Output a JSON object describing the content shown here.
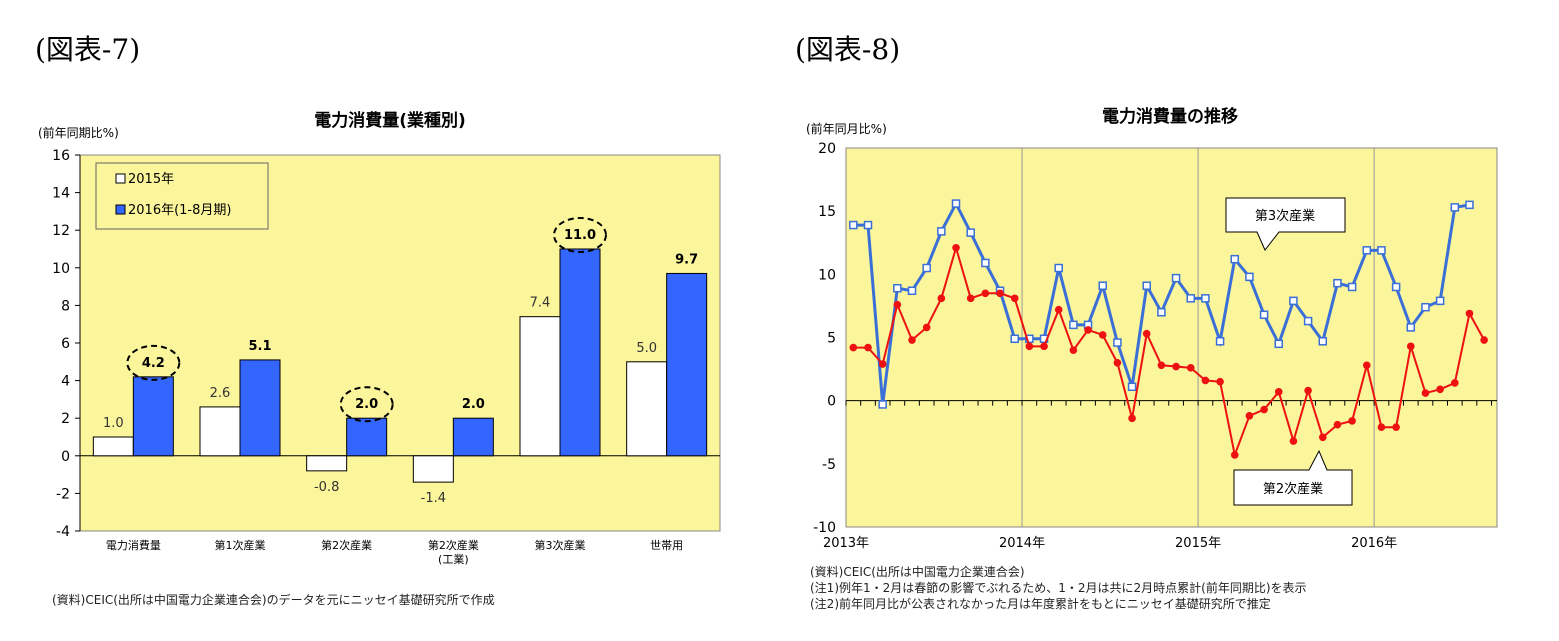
{
  "left": {
    "figure_label": "(図表-7)",
    "title": "電力消費量(業種別)",
    "unit": "(前年同期比%)",
    "source": "(資料)CEIC(出所は中国電力企業連合会)のデータを元にニッセイ基礎研究所で作成"
  },
  "right": {
    "figure_label": "(図表-8)",
    "title": "電力消費量の推移",
    "unit": "(前年同月比%)",
    "notes": [
      "(資料)CEIC(出所は中国電力企業連合会)",
      "(注1)例年1・2月は春節の影響でぶれるため、1・2月は共に2月時点累計(前年同期比)を表示",
      "(注2)前年同月比が公表されなかった月は年度累計をもとにニッセイ基礎研究所で推定"
    ]
  },
  "colors": {
    "plot_bg": "#fbf59b",
    "bar2015": "#ffffff",
    "bar2016": "#3366ff",
    "tertiary": "#3a6fd8",
    "secondary": "#ee1111"
  },
  "chart_data": [
    {
      "type": "bar",
      "categories": [
        "電力消費量",
        "第1次産業",
        "第2次産業",
        "第2次産業\n(工業)",
        "第3次産業",
        "世帯用"
      ],
      "series": [
        {
          "name": "2015年",
          "values": [
            1.0,
            2.6,
            -0.8,
            -1.4,
            7.4,
            5.0
          ]
        },
        {
          "name": "2016年(1-8月期)",
          "values": [
            4.2,
            5.1,
            2.0,
            2.0,
            11.0,
            9.7
          ]
        }
      ],
      "data_labels": [
        [
          "1.0",
          "2.6",
          "-0.8",
          "-1.4",
          "7.4",
          "5.0"
        ],
        [
          "4.2",
          "5.1",
          "2.0",
          "2.0",
          "11.0",
          "9.7"
        ]
      ],
      "circled": [
        [
          1,
          0
        ],
        [
          1,
          2
        ],
        [
          1,
          4
        ]
      ],
      "ylim": [
        -4,
        16
      ],
      "yticks": [
        -4,
        -2,
        0,
        2,
        4,
        6,
        8,
        10,
        12,
        14,
        16
      ],
      "legend_position": "top-left",
      "grid": false
    },
    {
      "type": "line",
      "x": [
        "2013-01",
        "2013-02",
        "2013-03",
        "2013-04",
        "2013-05",
        "2013-06",
        "2013-07",
        "2013-08",
        "2013-09",
        "2013-10",
        "2013-11",
        "2013-12",
        "2014-01",
        "2014-02",
        "2014-03",
        "2014-04",
        "2014-05",
        "2014-06",
        "2014-07",
        "2014-08",
        "2014-09",
        "2014-10",
        "2014-11",
        "2014-12",
        "2015-01",
        "2015-02",
        "2015-03",
        "2015-04",
        "2015-05",
        "2015-06",
        "2015-07",
        "2015-08",
        "2015-09",
        "2015-10",
        "2015-11",
        "2015-12",
        "2016-01",
        "2016-02",
        "2016-03",
        "2016-04",
        "2016-05",
        "2016-06",
        "2016-07",
        "2016-08"
      ],
      "xticks": [
        "2013年",
        "2014年",
        "2015年",
        "2016年"
      ],
      "series": [
        {
          "name": "第3次産業",
          "values": [
            13.9,
            13.9,
            -0.3,
            8.9,
            8.7,
            10.5,
            13.4,
            15.6,
            13.3,
            10.9,
            8.7,
            4.9,
            4.9,
            4.9,
            10.5,
            6.0,
            6.0,
            9.1,
            4.6,
            1.1,
            9.1,
            7.0,
            9.7,
            8.1,
            8.1,
            4.7,
            11.2,
            9.8,
            6.8,
            4.5,
            7.9,
            6.3,
            4.7,
            9.3,
            9.0,
            11.9,
            11.9,
            9.0,
            5.8,
            7.4,
            7.9,
            15.3,
            15.5,
            null
          ]
        },
        {
          "name": "第2次産業",
          "values": [
            4.2,
            4.2,
            2.9,
            7.6,
            4.8,
            5.8,
            8.1,
            12.1,
            8.1,
            8.5,
            8.5,
            8.1,
            4.3,
            4.3,
            7.2,
            4.0,
            5.6,
            5.2,
            3.0,
            -1.4,
            5.3,
            2.8,
            2.7,
            2.6,
            1.6,
            1.5,
            -4.3,
            -1.2,
            -0.7,
            0.7,
            -3.2,
            0.8,
            -2.9,
            -1.9,
            -1.6,
            2.8,
            -2.1,
            -2.1,
            4.3,
            0.6,
            0.9,
            1.4,
            6.9,
            4.8
          ]
        }
      ],
      "ylim": [
        -10,
        20
      ],
      "yticks": [
        -10,
        -5,
        0,
        5,
        10,
        15,
        20
      ],
      "grid": "vertical year lines"
    }
  ]
}
